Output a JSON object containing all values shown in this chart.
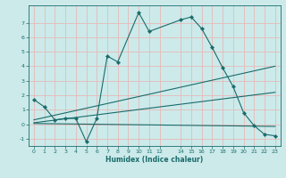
{
  "title": "",
  "xlabel": "Humidex (Indice chaleur)",
  "background_color": "#cceaea",
  "grid_color": "#e8b8b8",
  "line_color": "#1a6b6b",
  "xlim": [
    -0.5,
    23.5
  ],
  "ylim": [
    -1.5,
    8.2
  ],
  "xtick_positions": [
    0,
    1,
    2,
    3,
    4,
    5,
    6,
    7,
    8,
    9,
    10,
    11,
    12,
    14,
    15,
    16,
    17,
    18,
    19,
    20,
    21,
    22,
    23
  ],
  "xtick_labels": [
    "0",
    "1",
    "2",
    "3",
    "4",
    "5",
    "6",
    "7",
    "8",
    "9",
    "10",
    "11",
    "12",
    "14",
    "15",
    "16",
    "17",
    "18",
    "19",
    "20",
    "21",
    "22",
    "23"
  ],
  "ytick_positions": [
    -1,
    0,
    1,
    2,
    3,
    4,
    5,
    6,
    7
  ],
  "ytick_labels": [
    "-1",
    "0",
    "1",
    "2",
    "3",
    "4",
    "5",
    "6",
    "7"
  ],
  "series": [
    {
      "x": [
        0,
        1,
        2,
        3,
        4,
        5,
        6,
        7,
        8,
        10,
        11,
        14,
        15,
        16,
        17,
        18,
        19,
        20,
        21,
        22,
        23
      ],
      "y": [
        1.7,
        1.2,
        0.3,
        0.4,
        0.4,
        -1.2,
        0.4,
        4.7,
        4.3,
        7.7,
        6.4,
        7.2,
        7.4,
        6.6,
        5.3,
        3.9,
        2.6,
        0.8,
        -0.1,
        -0.7,
        -0.8
      ],
      "marker": true
    },
    {
      "x": [
        0,
        23
      ],
      "y": [
        0.3,
        4.0
      ],
      "marker": false
    },
    {
      "x": [
        0,
        23
      ],
      "y": [
        0.1,
        2.2
      ],
      "marker": false
    },
    {
      "x": [
        0,
        23
      ],
      "y": [
        0.05,
        -0.15
      ],
      "marker": false
    }
  ]
}
